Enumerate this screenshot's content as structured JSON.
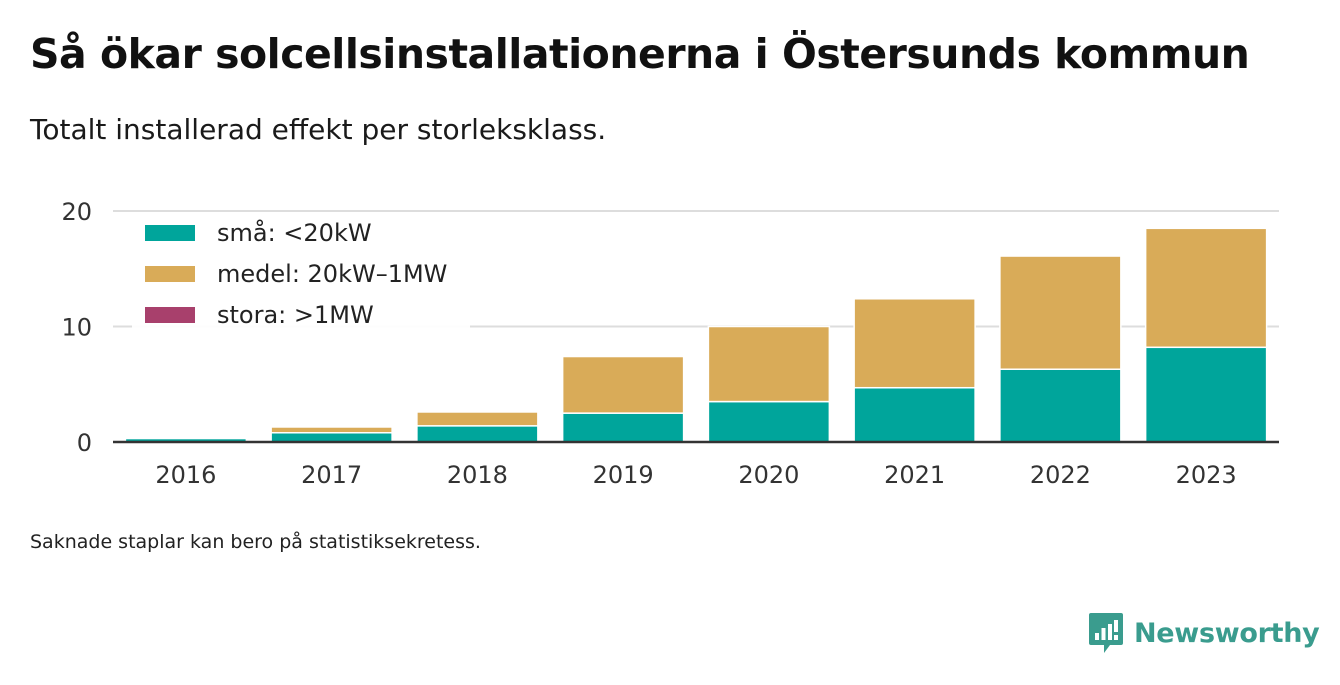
{
  "title": "Så ökar solcellsinstallationerna i Östersunds kommun",
  "subtitle": "Totalt installerad effekt per storleksklass.",
  "note": "Saknade staplar kan bero på statistiksekretess.",
  "brand": {
    "name": "Newsworthy",
    "icon": "newsworthy-logo-icon"
  },
  "colors": {
    "small": "#00a59b",
    "medium": "#d9ab58",
    "large": "#a8406c",
    "grid": "#dddddd",
    "axis": "#333333"
  },
  "chart_data": {
    "type": "bar",
    "stacked": true,
    "categories": [
      "2016",
      "2017",
      "2018",
      "2019",
      "2020",
      "2021",
      "2022",
      "2023"
    ],
    "series": [
      {
        "name": "små: <20kW",
        "color": "#00a59b",
        "values": [
          0.3,
          0.8,
          1.4,
          2.5,
          3.5,
          4.7,
          6.3,
          8.2
        ]
      },
      {
        "name": "medel: 20kW–1MW",
        "color": "#d9ab58",
        "values": [
          0.0,
          0.5,
          1.2,
          4.9,
          6.5,
          7.7,
          9.8,
          10.3
        ]
      },
      {
        "name": "stora: >1MW",
        "color": "#a8406c",
        "values": [
          0,
          0,
          0,
          0,
          0,
          0,
          0,
          0
        ]
      }
    ],
    "yticks": [
      0,
      10,
      20
    ],
    "ylim": [
      0,
      20
    ],
    "xlabel": "",
    "ylabel": "",
    "grid": true,
    "legend_position": "top-left"
  }
}
